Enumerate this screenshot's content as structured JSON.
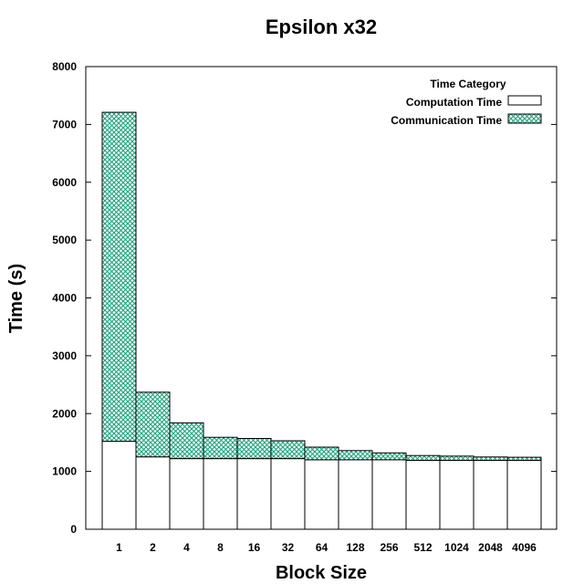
{
  "chart_data": {
    "type": "bar",
    "stacked": true,
    "title": "Epsilon x32",
    "xlabel": "Block Size",
    "ylabel": "Time (s)",
    "ylim": [
      0,
      8000
    ],
    "yticks": [
      "0",
      "1000",
      "2000",
      "3000",
      "4000",
      "5000",
      "6000",
      "7000",
      "8000"
    ],
    "categories": [
      "1",
      "2",
      "4",
      "8",
      "16",
      "32",
      "64",
      "128",
      "256",
      "512",
      "1024",
      "2048",
      "4096"
    ],
    "legend": {
      "title": "Time Category",
      "placement": "top-right"
    },
    "series": [
      {
        "name": "Computation Time",
        "color": "#ffffff",
        "pattern": "none",
        "values": [
          1520,
          1250,
          1220,
          1220,
          1220,
          1220,
          1200,
          1200,
          1200,
          1190,
          1190,
          1190,
          1190
        ]
      },
      {
        "name": "Communication Time",
        "color": "#1aa37a",
        "pattern": "crosshatch",
        "values": [
          5690,
          1120,
          620,
          370,
          350,
          310,
          220,
          160,
          120,
          85,
          75,
          60,
          55
        ]
      }
    ]
  }
}
